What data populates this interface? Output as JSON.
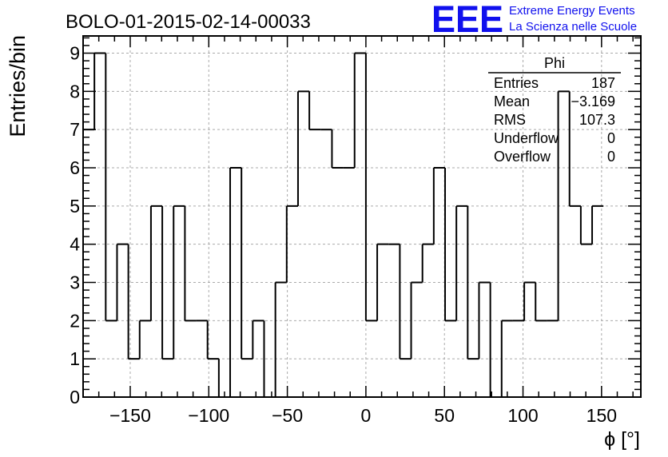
{
  "chart_data": {
    "type": "histogram",
    "title": "BOLO-01-2015-02-14-00033",
    "xlabel": "ϕ [°]",
    "ylabel": "Entries/bin",
    "xlim": [
      -180,
      175
    ],
    "ylim": [
      0,
      9.45
    ],
    "grid": true,
    "bin_width": 7.2,
    "bin_edges_start": -180,
    "x_ticks": [
      -150,
      -100,
      -50,
      0,
      50,
      100,
      150
    ],
    "y_ticks": [
      0,
      1,
      2,
      3,
      4,
      5,
      6,
      7,
      8,
      9
    ],
    "values": [
      7,
      9,
      2,
      4,
      1,
      2,
      5,
      1,
      5,
      2,
      2,
      1,
      0,
      6,
      1,
      2,
      0,
      3,
      5,
      8,
      7,
      7,
      6,
      6,
      9,
      2,
      4,
      4,
      1,
      3,
      4,
      6,
      2,
      5,
      1,
      3,
      0,
      2,
      2,
      3,
      2,
      2,
      8,
      5,
      4,
      5
    ],
    "stats_box": {
      "title": "Phi",
      "rows": [
        {
          "label": "Entries",
          "value": "187"
        },
        {
          "label": "Mean",
          "value": "−3.169"
        },
        {
          "label": "RMS",
          "value": "107.3"
        },
        {
          "label": "Underflow",
          "value": "0"
        },
        {
          "label": "Overflow",
          "value": "0"
        }
      ]
    }
  },
  "logo": {
    "mark": "EEE",
    "line1": "Extreme Energy Events",
    "line2": "La Scienza nelle Scuole"
  },
  "colors": {
    "logo": "#1010ee",
    "line": "#000000",
    "grid": "#aaaaaa"
  }
}
